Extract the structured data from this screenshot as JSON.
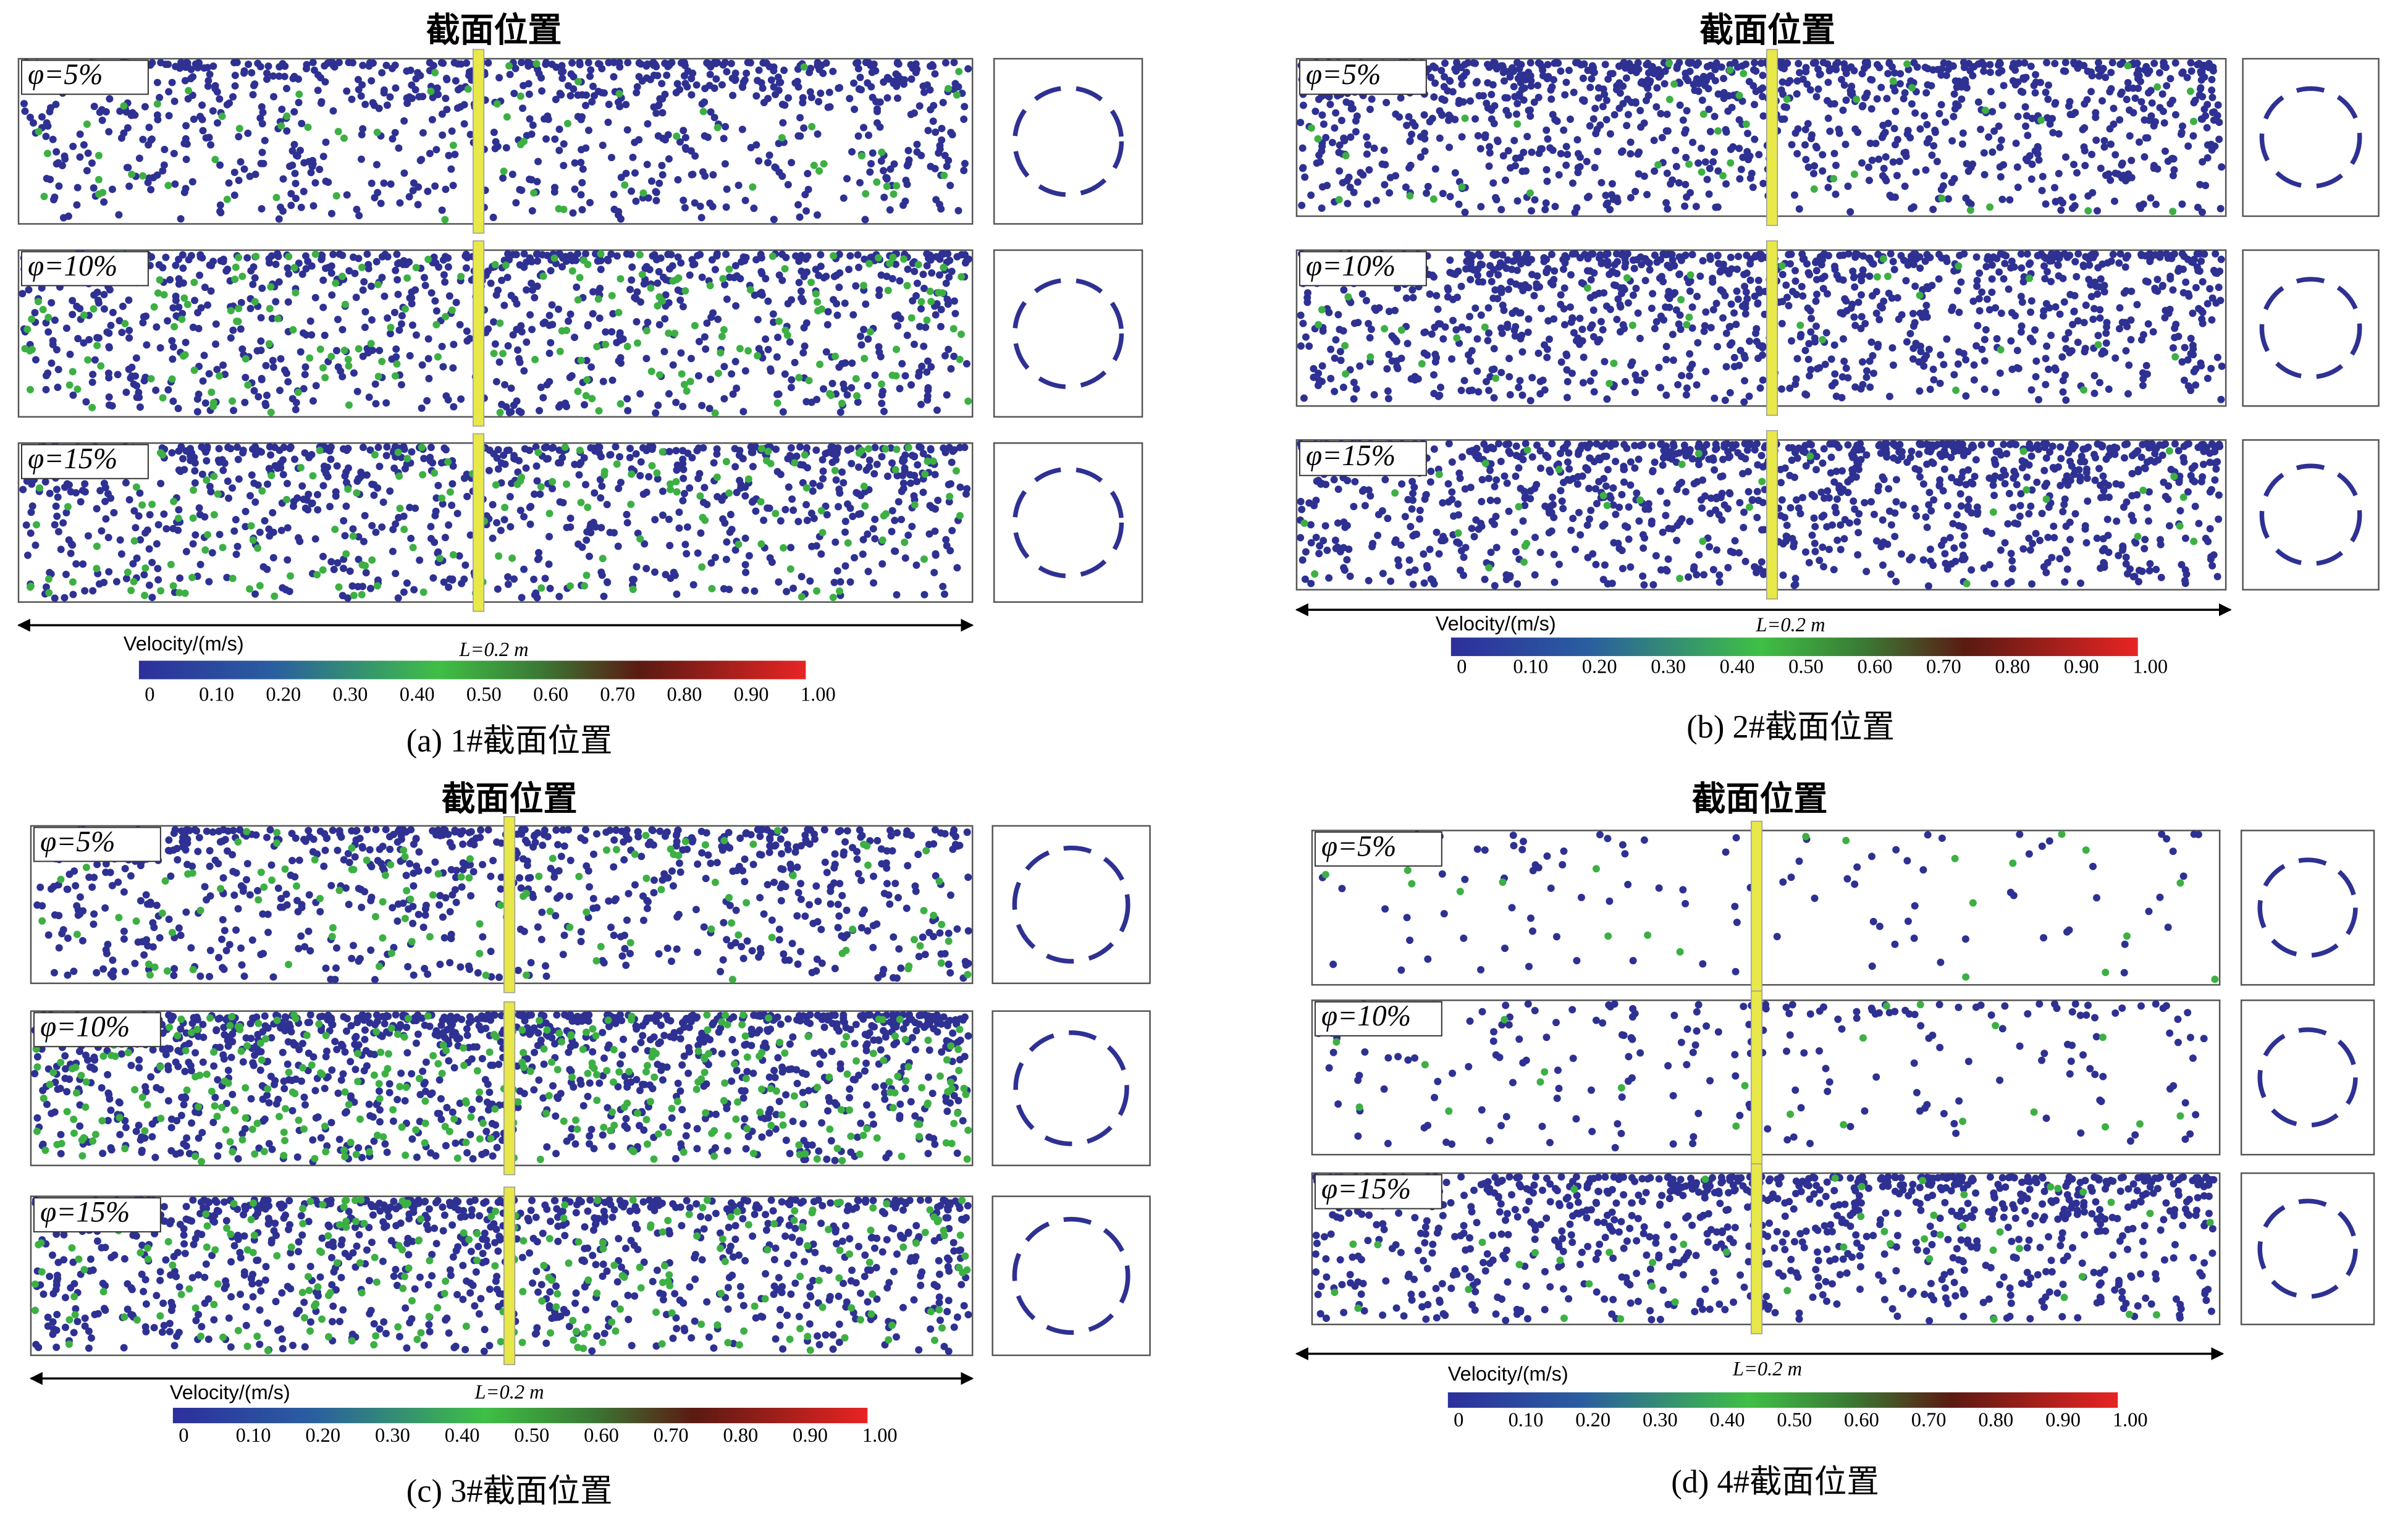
{
  "panels": [
    {
      "title": "截面位置",
      "rows": [
        "φ=5%",
        "φ=10%",
        "φ=15%"
      ],
      "legend_title": "Velocity/(m/s)",
      "length_label": "L=0.2 m",
      "scale_ticks": [
        "0",
        "0.10",
        "0.20",
        "0.30",
        "0.40",
        "0.50",
        "0.60",
        "0.70",
        "0.80",
        "0.90",
        "1.00"
      ],
      "caption": "(a) 1#截面位置"
    },
    {
      "title": "截面位置",
      "rows": [
        "φ=5%",
        "φ=10%",
        "φ=15%"
      ],
      "legend_title": "Velocity/(m/s)",
      "length_label": "L=0.2 m",
      "scale_ticks": [
        "0",
        "0.10",
        "0.20",
        "0.30",
        "0.40",
        "0.50",
        "0.60",
        "0.70",
        "0.80",
        "0.90",
        "1.00"
      ],
      "caption": "(b) 2#截面位置"
    },
    {
      "title": "截面位置",
      "rows": [
        "φ=5%",
        "φ=10%",
        "φ=15%"
      ],
      "legend_title": "Velocity/(m/s)",
      "length_label": "L=0.2 m",
      "scale_ticks": [
        "0",
        "0.10",
        "0.20",
        "0.30",
        "0.40",
        "0.50",
        "0.60",
        "0.70",
        "0.80",
        "0.90",
        "1.00"
      ],
      "caption": "(c) 3#截面位置"
    },
    {
      "title": "截面位置",
      "rows": [
        "φ=5%",
        "φ=10%",
        "φ=15%"
      ],
      "legend_title": "Velocity/(m/s)",
      "length_label": "L=0.2 m",
      "scale_ticks": [
        "0",
        "0.10",
        "0.20",
        "0.30",
        "0.40",
        "0.50",
        "0.60",
        "0.70",
        "0.80",
        "0.90",
        "1.00"
      ],
      "caption": "(d) 4#截面位置"
    }
  ]
}
